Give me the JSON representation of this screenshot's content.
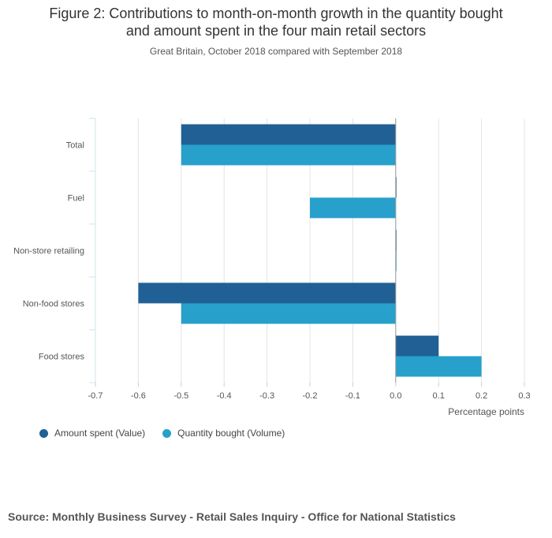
{
  "header": {
    "title_line1": "Figure 2: Contributions to month-on-month growth in the quantity bought",
    "title_line2": "and amount spent in the four main retail sectors",
    "subtitle": "Great Britain, October 2018 compared with September 2018"
  },
  "chart_data": {
    "type": "bar",
    "orientation": "horizontal",
    "categories": [
      "Total",
      "Fuel",
      "Non-store retailing",
      "Non-food stores",
      "Food stores"
    ],
    "series": [
      {
        "name": "Amount spent (Value)",
        "color": "#206095",
        "values": [
          -0.5,
          0.0,
          0.0,
          -0.6,
          0.1
        ]
      },
      {
        "name": "Quantity bought (Volume)",
        "color": "#27a0cc",
        "values": [
          -0.5,
          -0.2,
          0.0,
          -0.5,
          0.2
        ]
      }
    ],
    "xlim": [
      -0.7,
      0.3
    ],
    "xticks": [
      "-0.7",
      "-0.6",
      "-0.5",
      "-0.4",
      "-0.3",
      "-0.2",
      "-0.1",
      "0.0",
      "0.1",
      "0.2",
      "0.3"
    ],
    "xlabel": "Percentage points",
    "ylabel": "",
    "grid": true,
    "legend": "bottom-left"
  },
  "footer": {
    "source": "Source: Monthly Business Survey - Retail Sales Inquiry - Office for National Statistics"
  }
}
